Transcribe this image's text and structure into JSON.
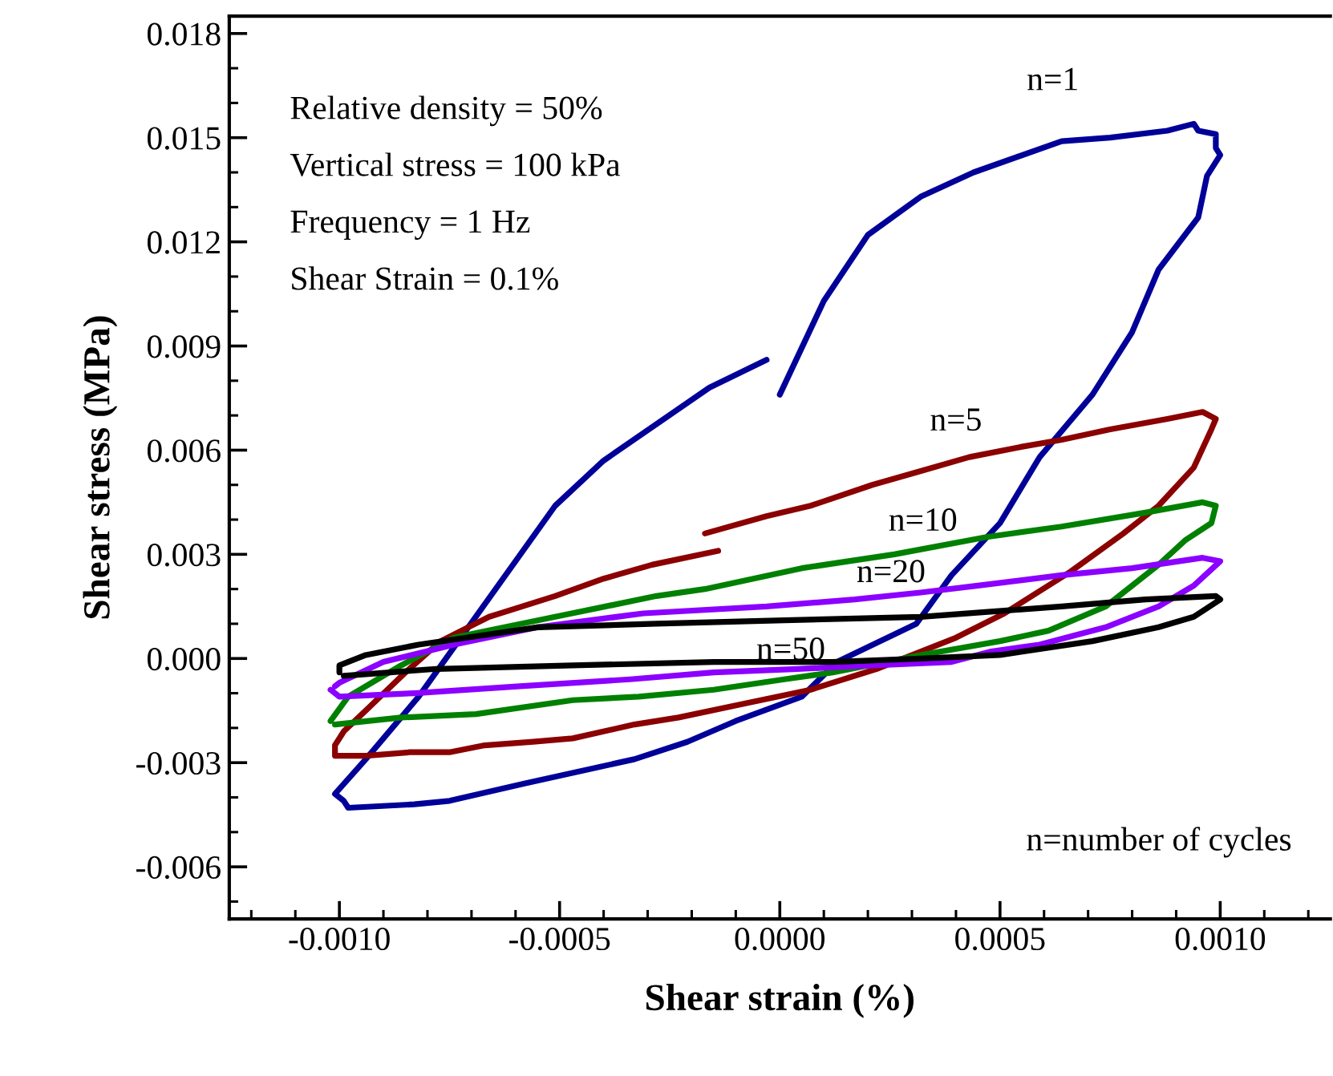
{
  "chart_data": {
    "type": "line",
    "xlabel": "Shear strain (%)",
    "ylabel": "Shear stress (MPa)",
    "xlim": [
      -0.00125,
      0.00125
    ],
    "ylim": [
      -0.0075,
      0.0185
    ],
    "xticks": [
      {
        "value": -0.0012,
        "label": null
      },
      {
        "value": -0.0011,
        "label": null
      },
      {
        "value": -0.001,
        "label": "-0.0010"
      },
      {
        "value": -0.0009,
        "label": null
      },
      {
        "value": -0.0008,
        "label": null
      },
      {
        "value": -0.0007,
        "label": null
      },
      {
        "value": -0.0006,
        "label": null
      },
      {
        "value": -0.0005,
        "label": "-0.0005"
      },
      {
        "value": -0.0004,
        "label": null
      },
      {
        "value": -0.0003,
        "label": null
      },
      {
        "value": -0.0002,
        "label": null
      },
      {
        "value": -0.0001,
        "label": null
      },
      {
        "value": 0,
        "label": "0.0000"
      },
      {
        "value": 0.0001,
        "label": null
      },
      {
        "value": 0.0002,
        "label": null
      },
      {
        "value": 0.0003,
        "label": null
      },
      {
        "value": 0.0004,
        "label": null
      },
      {
        "value": 0.0005,
        "label": "0.0005"
      },
      {
        "value": 0.0006,
        "label": null
      },
      {
        "value": 0.0007,
        "label": null
      },
      {
        "value": 0.0008,
        "label": null
      },
      {
        "value": 0.0009,
        "label": null
      },
      {
        "value": 0.001,
        "label": "0.0010"
      },
      {
        "value": 0.0011,
        "label": null
      },
      {
        "value": 0.0012,
        "label": null
      }
    ],
    "yticks": [
      {
        "value": -0.007,
        "label": null
      },
      {
        "value": -0.006,
        "label": "-0.006"
      },
      {
        "value": -0.005,
        "label": null
      },
      {
        "value": -0.004,
        "label": null
      },
      {
        "value": -0.003,
        "label": "-0.003"
      },
      {
        "value": -0.002,
        "label": null
      },
      {
        "value": -0.001,
        "label": null
      },
      {
        "value": 0,
        "label": "0.000"
      },
      {
        "value": 0.001,
        "label": null
      },
      {
        "value": 0.002,
        "label": null
      },
      {
        "value": 0.003,
        "label": "0.003"
      },
      {
        "value": 0.004,
        "label": null
      },
      {
        "value": 0.005,
        "label": null
      },
      {
        "value": 0.006,
        "label": "0.006"
      },
      {
        "value": 0.007,
        "label": null
      },
      {
        "value": 0.008,
        "label": null
      },
      {
        "value": 0.009,
        "label": "0.009"
      },
      {
        "value": 0.01,
        "label": null
      },
      {
        "value": 0.011,
        "label": null
      },
      {
        "value": 0.012,
        "label": "0.012"
      },
      {
        "value": 0.013,
        "label": null
      },
      {
        "value": 0.014,
        "label": null
      },
      {
        "value": 0.015,
        "label": "0.015"
      },
      {
        "value": 0.016,
        "label": null
      },
      {
        "value": 0.017,
        "label": null
      },
      {
        "value": 0.018,
        "label": "0.018"
      }
    ],
    "grid": false,
    "legend": false,
    "marker": "none",
    "line_style": "solid",
    "series": [
      {
        "name": "n=1",
        "color": "#000099",
        "x": [
          0.0,
          0.0001,
          0.0002,
          0.00032,
          0.00044,
          0.00064,
          0.00075,
          0.00088,
          0.00094,
          0.00095,
          0.00099,
          0.00099,
          0.001,
          0.00097,
          0.00095,
          0.00086,
          0.0008,
          0.00071,
          0.00059,
          0.0005,
          0.00039,
          0.00031,
          0.00013,
          5e-05,
          -0.0001,
          -0.00021,
          -0.00033,
          -0.00058,
          -0.00075,
          -0.00083,
          -0.00098,
          -0.00099,
          -0.00101,
          -0.00094,
          -0.00082,
          -0.00051,
          -0.0004,
          -0.00016,
          -3e-05
        ],
        "values": [
          0.0076,
          0.0103,
          0.0122,
          0.0133,
          0.014,
          0.0149,
          0.015,
          0.0152,
          0.0154,
          0.0152,
          0.0151,
          0.0147,
          0.0145,
          0.0139,
          0.0127,
          0.0112,
          0.0094,
          0.0076,
          0.0058,
          0.0039,
          0.0024,
          0.001,
          -0.0001,
          -0.0011,
          -0.0018,
          -0.0024,
          -0.0029,
          -0.0036,
          -0.0041,
          -0.0042,
          -0.0043,
          -0.0041,
          -0.0039,
          -0.0029,
          -0.0011,
          0.0044,
          0.0057,
          0.0078,
          0.0086
        ]
      },
      {
        "name": "n=5",
        "color": "#8b0000",
        "x": [
          -0.00017,
          -3e-05,
          7e-05,
          0.00021,
          0.00032,
          0.00043,
          0.00055,
          0.00064,
          0.00075,
          0.00088,
          0.00096,
          0.00099,
          0.00098,
          0.00094,
          0.00086,
          0.00078,
          0.00066,
          0.00051,
          0.0004,
          0.00022,
          7e-05,
          -8e-05,
          -0.00023,
          -0.00033,
          -0.00047,
          -0.00056,
          -0.00067,
          -0.00075,
          -0.00084,
          -0.00094,
          -0.00101,
          -0.00101,
          -0.00099,
          -0.00094,
          -0.00085,
          -0.00077,
          -0.00066,
          -0.00051,
          -0.0004,
          -0.00029,
          -0.00014
        ],
        "values": [
          0.0036,
          0.0041,
          0.0044,
          0.005,
          0.0054,
          0.0058,
          0.0061,
          0.0063,
          0.0066,
          0.0069,
          0.0071,
          0.0069,
          0.0066,
          0.0055,
          0.0044,
          0.0036,
          0.0025,
          0.0013,
          0.0006,
          -0.0003,
          -0.0009,
          -0.0013,
          -0.0017,
          -0.0019,
          -0.0023,
          -0.0024,
          -0.0025,
          -0.0027,
          -0.0027,
          -0.0028,
          -0.0028,
          -0.0025,
          -0.0021,
          -0.0015,
          -0.0004,
          0.0005,
          0.0012,
          0.0018,
          0.0023,
          0.0027,
          0.0031
        ]
      },
      {
        "name": "n=10",
        "color": "#008000",
        "x": [
          -0.00102,
          -0.00098,
          -0.00086,
          -0.00074,
          -0.00051,
          -0.00028,
          -0.00017,
          5e-05,
          0.00026,
          0.00047,
          0.00064,
          0.00083,
          0.00096,
          0.00099,
          0.00098,
          0.00092,
          0.00086,
          0.00074,
          0.00061,
          0.0005,
          0.00032,
          0.00012,
          1e-05,
          -0.00015,
          -0.00032,
          -0.00047,
          -0.00069,
          -0.00086,
          -0.00101
        ],
        "values": [
          -0.0018,
          -0.0011,
          -0.0002,
          0.0006,
          0.0012,
          0.0018,
          0.002,
          0.0026,
          0.003,
          0.0035,
          0.0038,
          0.0042,
          0.0045,
          0.0044,
          0.0039,
          0.0034,
          0.0027,
          0.0015,
          0.0008,
          0.0005,
          0.0001,
          -0.0004,
          -0.0006,
          -0.0009,
          -0.0011,
          -0.0012,
          -0.0016,
          -0.0017,
          -0.0019
        ]
      },
      {
        "name": "n=20",
        "color": "#8b00ff",
        "x": [
          -0.00101,
          -0.001,
          -0.0009,
          -0.00074,
          -0.00055,
          -0.00031,
          -3e-05,
          0.00017,
          0.00032,
          0.00045,
          0.00064,
          0.0008,
          0.00096,
          0.001,
          0.00094,
          0.00086,
          0.00074,
          0.00059,
          0.00048,
          0.00039,
          0.00021,
          4e-05,
          -0.00015,
          -0.00034,
          -0.00059,
          -0.00083,
          -0.001,
          -0.00102
        ],
        "values": [
          -0.0008,
          -0.0007,
          -0.0001,
          0.0004,
          0.0009,
          0.0013,
          0.0015,
          0.0017,
          0.0019,
          0.0021,
          0.0024,
          0.0026,
          0.0029,
          0.0028,
          0.0021,
          0.0015,
          0.0009,
          0.0004,
          0.0002,
          -0.0001,
          -0.0002,
          -0.0003,
          -0.0004,
          -0.0006,
          -0.0008,
          -0.001,
          -0.0011,
          -0.0009
        ]
      },
      {
        "name": "n=50",
        "color": "#000000",
        "x": [
          -0.001,
          -0.001,
          -0.00094,
          -0.00082,
          -0.00055,
          -0.00028,
          1e-05,
          0.00032,
          0.00064,
          0.00083,
          0.00099,
          0.001,
          0.00094,
          0.00086,
          0.00071,
          0.0005,
          0.00032,
          0.00012,
          -0.00015,
          -0.00047,
          -0.00078,
          -0.00099
        ],
        "values": [
          -0.0004,
          -0.0002,
          0.0001,
          0.0004,
          0.0009,
          0.001,
          0.0011,
          0.0012,
          0.0015,
          0.0017,
          0.0018,
          0.0017,
          0.0012,
          0.0009,
          0.0005,
          0.0001,
          0.0,
          -0.0001,
          -0.0001,
          -0.0002,
          -0.0003,
          -0.0005
        ]
      }
    ],
    "annotations": [
      "Relative density = 50%",
      "Vertical stress = 100 kPa",
      "Frequency = 1 Hz",
      "Shear Strain = 0.1%",
      "n=number of cycles"
    ]
  }
}
